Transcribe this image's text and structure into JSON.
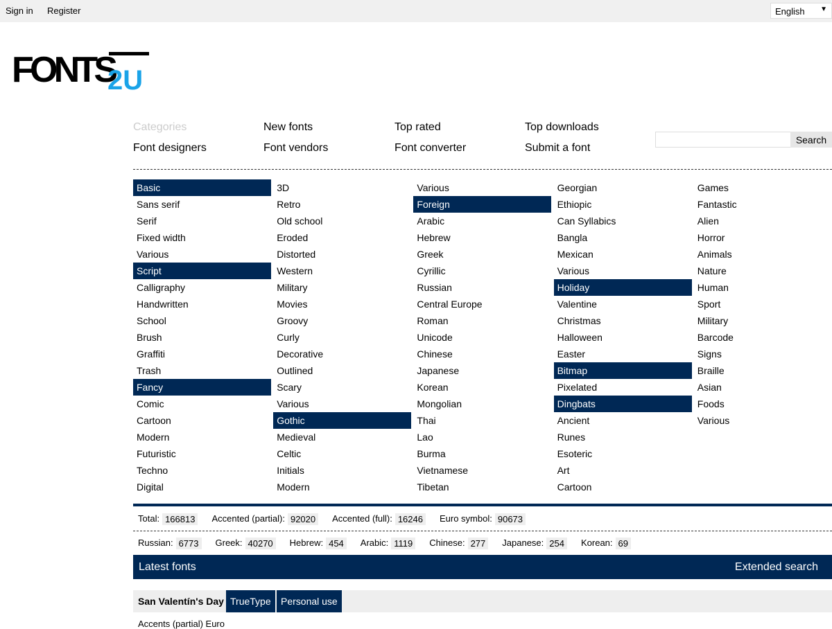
{
  "topbar": {
    "sign_in": "Sign in",
    "register": "Register",
    "language": "English"
  },
  "logo": {
    "text": "FONTS2U"
  },
  "nav": {
    "categories": "Categories",
    "new_fonts": "New fonts",
    "top_rated": "Top rated",
    "top_downloads": "Top downloads",
    "font_designers": "Font designers",
    "font_vendors": "Font vendors",
    "font_converter": "Font converter",
    "submit_font": "Submit a font"
  },
  "search": {
    "placeholder": "",
    "button": "Search"
  },
  "categories": [
    [
      [
        "Basic",
        1
      ],
      [
        "Sans serif"
      ],
      [
        "Serif"
      ],
      [
        "Fixed width"
      ],
      [
        "Various"
      ],
      [
        "Script",
        1
      ],
      [
        "Calligraphy"
      ],
      [
        "Handwritten"
      ],
      [
        "School"
      ],
      [
        "Brush"
      ],
      [
        "Graffiti"
      ],
      [
        "Trash"
      ],
      [
        "Fancy",
        1
      ],
      [
        "Comic"
      ],
      [
        "Cartoon"
      ],
      [
        "Modern"
      ],
      [
        "Futuristic"
      ],
      [
        "Techno"
      ],
      [
        "Digital"
      ]
    ],
    [
      [
        "3D"
      ],
      [
        "Retro"
      ],
      [
        "Old school"
      ],
      [
        "Eroded"
      ],
      [
        "Distorted"
      ],
      [
        "Western"
      ],
      [
        "Military"
      ],
      [
        "Movies"
      ],
      [
        "Groovy"
      ],
      [
        "Curly"
      ],
      [
        "Decorative"
      ],
      [
        "Outlined"
      ],
      [
        "Scary"
      ],
      [
        "Various"
      ],
      [
        "Gothic",
        1
      ],
      [
        "Medieval"
      ],
      [
        "Celtic"
      ],
      [
        "Initials"
      ],
      [
        "Modern"
      ]
    ],
    [
      [
        "Various"
      ],
      [
        "Foreign",
        1
      ],
      [
        "Arabic"
      ],
      [
        "Hebrew"
      ],
      [
        "Greek"
      ],
      [
        "Cyrillic"
      ],
      [
        "Russian"
      ],
      [
        "Central Europe"
      ],
      [
        "Roman"
      ],
      [
        "Unicode"
      ],
      [
        "Chinese"
      ],
      [
        "Japanese"
      ],
      [
        "Korean"
      ],
      [
        "Mongolian"
      ],
      [
        "Thai"
      ],
      [
        "Lao"
      ],
      [
        "Burma"
      ],
      [
        "Vietnamese"
      ],
      [
        "Tibetan"
      ]
    ],
    [
      [
        "Georgian"
      ],
      [
        "Ethiopic"
      ],
      [
        "Can Syllabics"
      ],
      [
        "Bangla"
      ],
      [
        "Mexican"
      ],
      [
        "Various"
      ],
      [
        "Holiday",
        1
      ],
      [
        "Valentine"
      ],
      [
        "Christmas"
      ],
      [
        "Halloween"
      ],
      [
        "Easter"
      ],
      [
        "Bitmap",
        1
      ],
      [
        "Pixelated"
      ],
      [
        "Dingbats",
        1
      ],
      [
        "Ancient"
      ],
      [
        "Runes"
      ],
      [
        "Esoteric"
      ],
      [
        "Art"
      ],
      [
        "Cartoon"
      ]
    ],
    [
      [
        "Games"
      ],
      [
        "Fantastic"
      ],
      [
        "Alien"
      ],
      [
        "Horror"
      ],
      [
        "Animals"
      ],
      [
        "Nature"
      ],
      [
        "Human"
      ],
      [
        "Sport"
      ],
      [
        "Military"
      ],
      [
        "Barcode"
      ],
      [
        "Signs"
      ],
      [
        "Braille"
      ],
      [
        "Asian"
      ],
      [
        "Foods"
      ],
      [
        "Various"
      ]
    ]
  ],
  "stats1": [
    [
      "Total:",
      "166813"
    ],
    [
      "Accented (partial):",
      "92020"
    ],
    [
      "Accented (full):",
      "16246"
    ],
    [
      "Euro symbol:",
      "90673"
    ]
  ],
  "stats2": [
    [
      "Russian:",
      "6773"
    ],
    [
      "Greek:",
      "40270"
    ],
    [
      "Hebrew:",
      "454"
    ],
    [
      "Arabic:",
      "1119"
    ],
    [
      "Chinese:",
      "277"
    ],
    [
      "Japanese:",
      "254"
    ],
    [
      "Korean:",
      "69"
    ]
  ],
  "latest": {
    "title": "Latest fonts",
    "extended_search": "Extended search"
  },
  "font": {
    "name": "San Valentín's Day",
    "type": "TrueType",
    "license": "Personal use",
    "features": "Accents (partial)    Euro"
  },
  "colors": {
    "navy": "#002855",
    "logo_blue": "#1aa3e8"
  }
}
